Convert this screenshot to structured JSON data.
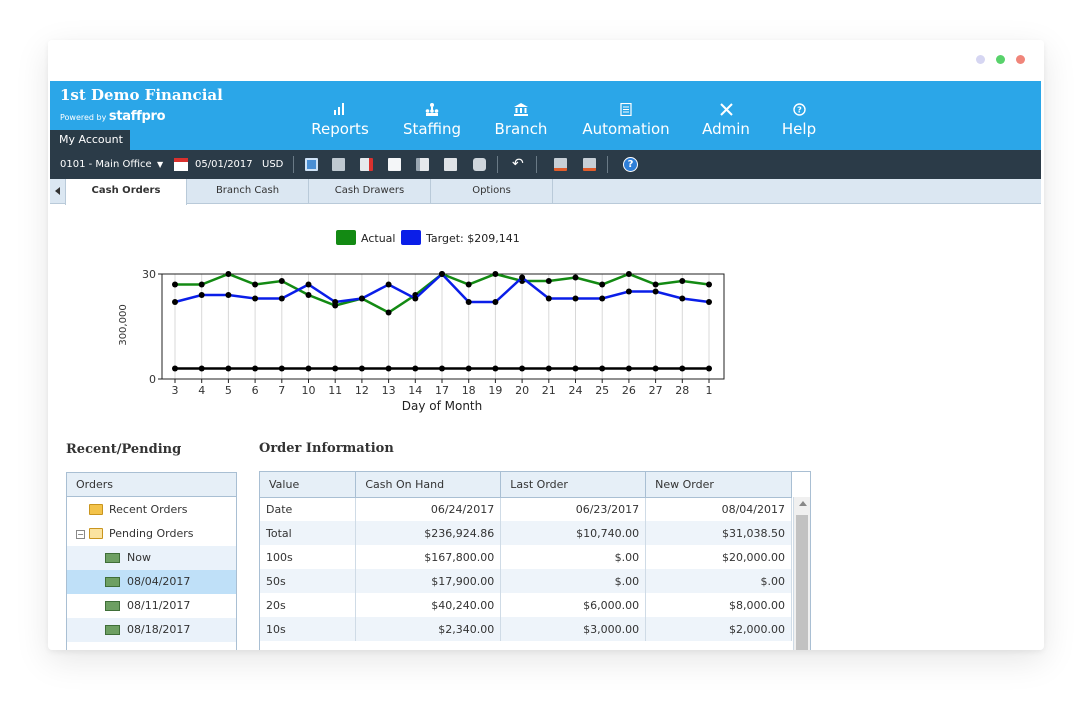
{
  "window_controls": {
    "colors": [
      "#d6d6f2",
      "#58d26b",
      "#f0857a"
    ]
  },
  "header": {
    "company": "1st Demo Financial",
    "powered_by": "Powered by",
    "product": "staffpro",
    "my_account": "My Account",
    "bg_color": "#2ba6e8"
  },
  "nav": [
    {
      "label": "Reports",
      "icon": "bar-chart-icon"
    },
    {
      "label": "Staffing",
      "icon": "people-icon"
    },
    {
      "label": "Branch",
      "icon": "bank-icon"
    },
    {
      "label": "Automation",
      "icon": "document-icon"
    },
    {
      "label": "Admin",
      "icon": "tools-icon"
    },
    {
      "label": "Help",
      "icon": "help-icon"
    }
  ],
  "toolbar": {
    "branch": "0101 - Main Office",
    "date": "05/01/2017",
    "currency": "USD"
  },
  "tabs": [
    "Cash Orders",
    "Branch Cash",
    "Cash Drawers",
    "Options"
  ],
  "chart_data": {
    "type": "line",
    "legend": [
      {
        "label": "Actual",
        "color": "#138a13"
      },
      {
        "label": "Target: $209,141",
        "color": "#0a1ee8"
      }
    ],
    "legend_position": "top",
    "xlabel": "Day of Month",
    "ylabel": "300,000",
    "yticks": [
      "0",
      "30"
    ],
    "ylim": [
      0,
      30
    ],
    "categories": [
      "3",
      "4",
      "5",
      "6",
      "7",
      "10",
      "11",
      "12",
      "13",
      "14",
      "17",
      "18",
      "19",
      "20",
      "21",
      "24",
      "25",
      "26",
      "27",
      "28",
      "1"
    ],
    "series": [
      {
        "name": "Actual",
        "color": "#138a13",
        "values": [
          27,
          27,
          30,
          27,
          28,
          24,
          21,
          23,
          19,
          24,
          30,
          27,
          30,
          28,
          28,
          29,
          27,
          30,
          27,
          28,
          27
        ]
      },
      {
        "name": "Target: $209,141",
        "color": "#0a1ee8",
        "values": [
          22,
          24,
          24,
          23,
          23,
          27,
          22,
          23,
          27,
          23,
          30,
          22,
          22,
          29,
          23,
          23,
          23,
          25,
          25,
          23,
          22
        ]
      },
      {
        "color": "#000000",
        "values": [
          3,
          3,
          3,
          3,
          3,
          3,
          3,
          3,
          3,
          3,
          3,
          3,
          3,
          3,
          3,
          3,
          3,
          3,
          3,
          3,
          3
        ]
      }
    ],
    "grid": true
  },
  "recent_pending": {
    "title": "Recent/Pending",
    "header": "Orders",
    "items": [
      {
        "label": "Recent Orders",
        "type": "folder"
      },
      {
        "label": "Pending Orders",
        "type": "folder-open"
      },
      {
        "label": "Now",
        "type": "cash"
      },
      {
        "label": "08/04/2017",
        "type": "cash"
      },
      {
        "label": "08/11/2017",
        "type": "cash"
      },
      {
        "label": "08/18/2017",
        "type": "cash"
      }
    ]
  },
  "order_info": {
    "title": "Order Information",
    "columns": [
      "Value",
      "Cash On Hand",
      "Last Order",
      "New Order"
    ],
    "rows": [
      [
        "Date",
        "06/24/2017",
        "06/23/2017",
        "08/04/2017"
      ],
      [
        "Total",
        "$236,924.86",
        "$10,740.00",
        "$31,038.50"
      ],
      [
        "100s",
        "$167,800.00",
        "$.00",
        "$20,000.00"
      ],
      [
        "50s",
        "$17,900.00",
        "$.00",
        "$.00"
      ],
      [
        "20s",
        "$40,240.00",
        "$6,000.00",
        "$8,000.00"
      ],
      [
        "10s",
        "$2,340.00",
        "$3,000.00",
        "$2,000.00"
      ]
    ]
  }
}
